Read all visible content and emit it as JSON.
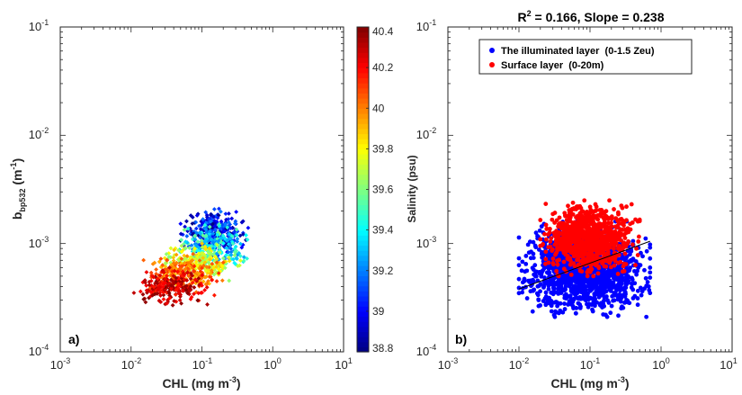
{
  "chart_data": [
    {
      "type": "scatter",
      "panel_label": "a)",
      "xlabel": "CHL (mg m",
      "xlabel_sup": "-3",
      "xlabel_end": ")",
      "ylabel_main": "b",
      "ylabel_sub": "bp532",
      "ylabel_unit": " (m",
      "ylabel_sup": "-1",
      "ylabel_end": ")",
      "xscale": "log",
      "yscale": "log",
      "xlim": [
        0.001,
        10
      ],
      "ylim": [
        0.0001,
        0.1
      ],
      "x_ticks": [
        {
          "base": "10",
          "exp": "-3"
        },
        {
          "base": "10",
          "exp": "-2"
        },
        {
          "base": "10",
          "exp": "-1"
        },
        {
          "base": "10",
          "exp": "0"
        },
        {
          "base": "10",
          "exp": "1"
        }
      ],
      "y_ticks": [
        {
          "base": "10",
          "exp": "-4"
        },
        {
          "base": "10",
          "exp": "-3"
        },
        {
          "base": "10",
          "exp": "-2"
        },
        {
          "base": "10",
          "exp": "-1"
        }
      ],
      "color_variable": "Salinity (psu)",
      "colorbar": {
        "label": "Salinity (psu)",
        "range": [
          38.8,
          40.4
        ],
        "ticks": [
          "38.8",
          "39",
          "39.2",
          "39.4",
          "39.6",
          "39.8",
          "40",
          "40.2",
          "40.4"
        ]
      },
      "point_groups": [
        {
          "salinity_range": [
            38.8,
            39.2
          ],
          "chl_range": [
            0.05,
            0.45
          ],
          "bbp_range": [
            0.0007,
            0.0021
          ],
          "count": 320
        },
        {
          "salinity_range": [
            39.2,
            39.6
          ],
          "chl_range": [
            0.04,
            0.55
          ],
          "bbp_range": [
            0.00055,
            0.0016
          ],
          "count": 180
        },
        {
          "salinity_range": [
            39.6,
            39.9
          ],
          "chl_range": [
            0.025,
            0.35
          ],
          "bbp_range": [
            0.00045,
            0.001
          ],
          "count": 200
        },
        {
          "salinity_range": [
            39.9,
            40.15
          ],
          "chl_range": [
            0.015,
            0.2
          ],
          "bbp_range": [
            0.00035,
            0.0008
          ],
          "count": 200
        },
        {
          "salinity_range": [
            40.15,
            40.4
          ],
          "chl_range": [
            0.01,
            0.15
          ],
          "bbp_range": [
            0.00026,
            0.0006
          ],
          "count": 220
        }
      ]
    },
    {
      "type": "scatter",
      "panel_label": "b)",
      "title_r": "R",
      "title_r_sup": "2",
      "title_rest": " = 0.166, Slope = 0.238",
      "xlabel": "CHL (mg m",
      "xlabel_sup": "-3",
      "xlabel_end": ")",
      "xscale": "log",
      "yscale": "log",
      "xlim": [
        0.001,
        10
      ],
      "ylim": [
        0.0001,
        0.1
      ],
      "x_ticks": [
        {
          "base": "10",
          "exp": "-3"
        },
        {
          "base": "10",
          "exp": "-2"
        },
        {
          "base": "10",
          "exp": "-1"
        },
        {
          "base": "10",
          "exp": "0"
        },
        {
          "base": "10",
          "exp": "1"
        }
      ],
      "y_ticks": [
        {
          "base": "10",
          "exp": "-4"
        },
        {
          "base": "10",
          "exp": "-3"
        },
        {
          "base": "10",
          "exp": "-2"
        },
        {
          "base": "10",
          "exp": "-1"
        }
      ],
      "legend_position": "top",
      "series": [
        {
          "name": "The illuminated layer  (0-1.5 Zeu)",
          "color": "#0000ff",
          "chl_range": [
            0.01,
            0.7
          ],
          "bbp_range": [
            0.00021,
            0.0016
          ],
          "count": 1400
        },
        {
          "name": "Surface layer  (0-20m)",
          "color": "#ff0000",
          "chl_range": [
            0.02,
            0.5
          ],
          "bbp_range": [
            0.0005,
            0.0025
          ],
          "count": 900
        }
      ],
      "fit_line": {
        "x": [
          0.01,
          0.7
        ],
        "y": [
          0.00038,
          0.00105
        ],
        "color": "#000000"
      }
    }
  ]
}
